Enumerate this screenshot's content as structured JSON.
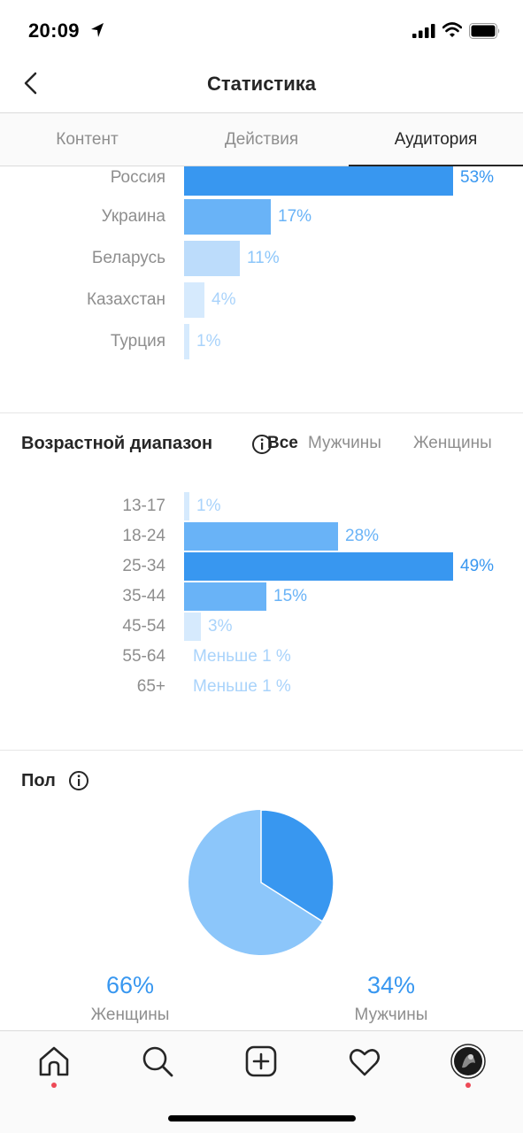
{
  "status_bar": {
    "time": "20:09"
  },
  "nav": {
    "title": "Статистика"
  },
  "tabs": [
    {
      "label": "Контент",
      "active": false
    },
    {
      "label": "Действия",
      "active": false
    },
    {
      "label": "Аудитория",
      "active": true
    }
  ],
  "countries": {
    "items": [
      {
        "label": "Россия",
        "value": 53,
        "value_label": "53%"
      },
      {
        "label": "Украина",
        "value": 17,
        "value_label": "17%"
      },
      {
        "label": "Беларусь",
        "value": 11,
        "value_label": "11%"
      },
      {
        "label": "Казахстан",
        "value": 4,
        "value_label": "4%"
      },
      {
        "label": "Турция",
        "value": 1,
        "value_label": "1%"
      }
    ]
  },
  "age": {
    "title": "Возрастной диапазон",
    "filters": [
      {
        "label": "Все",
        "active": true
      },
      {
        "label": "Мужчины",
        "active": false
      },
      {
        "label": "Женщины",
        "active": false
      }
    ],
    "items": [
      {
        "label": "13-17",
        "value": 1,
        "value_label": "1%"
      },
      {
        "label": "18-24",
        "value": 28,
        "value_label": "28%"
      },
      {
        "label": "25-34",
        "value": 49,
        "value_label": "49%"
      },
      {
        "label": "35-44",
        "value": 15,
        "value_label": "15%"
      },
      {
        "label": "45-54",
        "value": 3,
        "value_label": "3%"
      },
      {
        "label": "55-64",
        "value": 0,
        "value_label": "Меньше 1 %"
      },
      {
        "label": "65+",
        "value": 0,
        "value_label": "Меньше 1 %"
      }
    ]
  },
  "gender": {
    "title": "Пол",
    "women": {
      "label": "Женщины",
      "value": 66,
      "value_label": "66%"
    },
    "men": {
      "label": "Мужчины",
      "value": 34,
      "value_label": "34%"
    }
  },
  "colors": {
    "bar_strong": "#3897f0",
    "bar_medium": "#69b3f7",
    "bar_light": "#bcdcfb",
    "bar_faint": "#d6eafd",
    "pie_men": "#3897f0",
    "pie_women": "#8cc6fa",
    "notification_dot": "#ed4956"
  },
  "tabbar": {
    "icons": [
      "home-icon",
      "search-icon",
      "new-post-icon",
      "activity-icon",
      "profile-avatar"
    ]
  }
}
